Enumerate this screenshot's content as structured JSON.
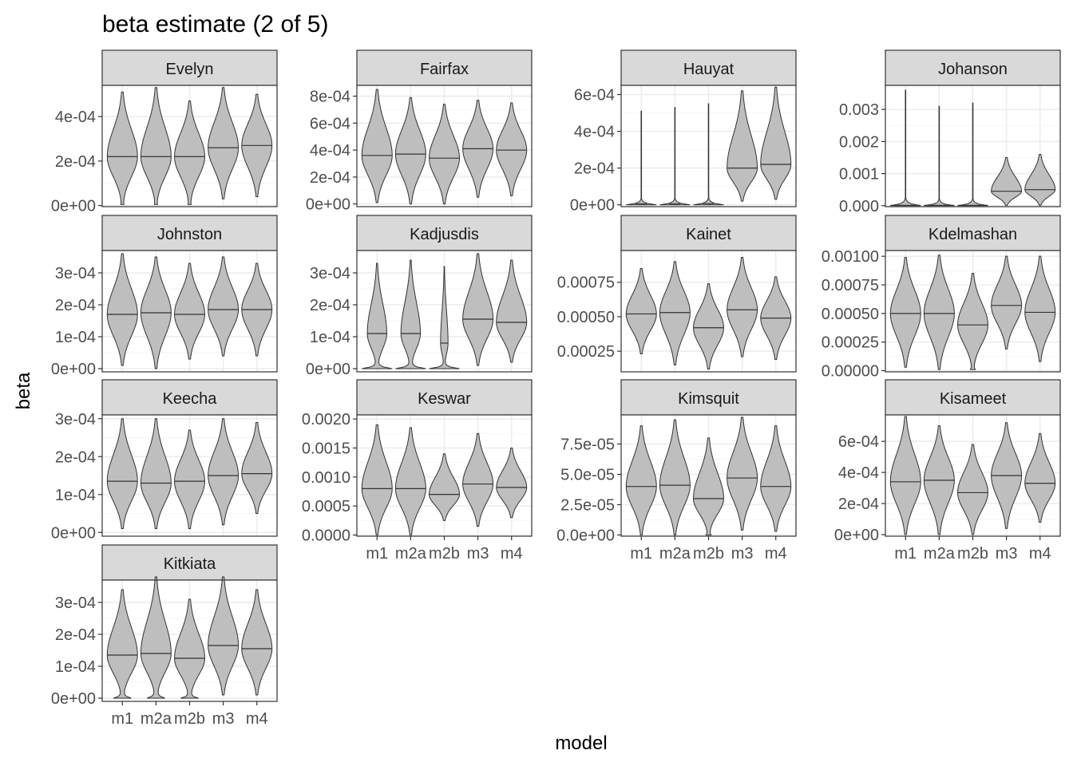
{
  "chart_data": {
    "type": "violin",
    "title": "beta estimate (2 of 5)",
    "xlabel": "model",
    "ylabel": "beta",
    "grid": true,
    "categories": [
      "m1",
      "m2a",
      "m2b",
      "m3",
      "m4"
    ],
    "panels": [
      {
        "name": "Evelyn",
        "ylim": [
          -5e-06,
          0.00054
        ],
        "yticks": [
          {
            "v": 0,
            "label": "0e+00"
          },
          {
            "v": 0.0002,
            "label": "2e-04"
          },
          {
            "v": 0.0004,
            "label": "4e-04"
          }
        ],
        "violins": [
          {
            "min": 5e-06,
            "max": 0.00051,
            "median": 0.00022,
            "skew": 0.05
          },
          {
            "min": 5e-06,
            "max": 0.00053,
            "median": 0.00022,
            "skew": 0.05
          },
          {
            "min": 5e-06,
            "max": 0.00047,
            "median": 0.00022,
            "skew": 0.05
          },
          {
            "min": 3e-05,
            "max": 0.00053,
            "median": 0.00026,
            "skew": 0
          },
          {
            "min": 4e-05,
            "max": 0.0005,
            "median": 0.00027,
            "skew": 0
          }
        ]
      },
      {
        "name": "Fairfax",
        "ylim": [
          -2e-05,
          0.00088
        ],
        "yticks": [
          {
            "v": 0,
            "label": "0e+00"
          },
          {
            "v": 0.0002,
            "label": "2e-04"
          },
          {
            "v": 0.0004,
            "label": "4e-04"
          },
          {
            "v": 0.0006,
            "label": "6e-04"
          },
          {
            "v": 0.0008,
            "label": "8e-04"
          }
        ],
        "violins": [
          {
            "min": 1e-05,
            "max": 0.00085,
            "median": 0.00036,
            "skew": 0
          },
          {
            "min": 0,
            "max": 0.00079,
            "median": 0.00037,
            "skew": 0
          },
          {
            "min": 0,
            "max": 0.00074,
            "median": 0.00034,
            "skew": 0
          },
          {
            "min": 5e-05,
            "max": 0.00077,
            "median": 0.00041,
            "skew": 0
          },
          {
            "min": 6e-05,
            "max": 0.00075,
            "median": 0.0004,
            "skew": 0
          }
        ]
      },
      {
        "name": "Hauyat",
        "ylim": [
          -1e-05,
          0.00065
        ],
        "yticks": [
          {
            "v": 0,
            "label": "0e+00"
          },
          {
            "v": 0.0002,
            "label": "2e-04"
          },
          {
            "v": 0.0004,
            "label": "4e-04"
          },
          {
            "v": 0.0006,
            "label": "6e-04"
          }
        ],
        "violins": [
          {
            "min": 0,
            "max": 0.00051,
            "median": 5e-06,
            "skew": 1
          },
          {
            "min": 0,
            "max": 0.00053,
            "median": 5e-06,
            "skew": 1
          },
          {
            "min": 0,
            "max": 0.00055,
            "median": 6e-06,
            "skew": 1
          },
          {
            "min": 2e-05,
            "max": 0.00062,
            "median": 0.0002,
            "skew": 0
          },
          {
            "min": 3e-05,
            "max": 0.00064,
            "median": 0.00022,
            "skew": 0
          }
        ]
      },
      {
        "name": "Johanson",
        "ylim": [
          -3e-05,
          0.00375
        ],
        "yticks": [
          {
            "v": 0,
            "label": "0.000"
          },
          {
            "v": 0.001,
            "label": "0.001"
          },
          {
            "v": 0.002,
            "label": "0.002"
          },
          {
            "v": 0.003,
            "label": "0.003"
          }
        ],
        "violins": [
          {
            "min": 0,
            "max": 0.0036,
            "median": 1e-05,
            "skew": 1
          },
          {
            "min": 0,
            "max": 0.0031,
            "median": 1e-05,
            "skew": 1
          },
          {
            "min": 0,
            "max": 0.0032,
            "median": 1e-05,
            "skew": 1
          },
          {
            "min": 1e-05,
            "max": 0.0015,
            "median": 0.00045,
            "skew": 0
          },
          {
            "min": 1e-05,
            "max": 0.0016,
            "median": 0.0005,
            "skew": 0
          }
        ]
      },
      {
        "name": "Johnston",
        "ylim": [
          -1e-05,
          0.00037
        ],
        "yticks": [
          {
            "v": 0,
            "label": "0e+00"
          },
          {
            "v": 0.0001,
            "label": "1e-04"
          },
          {
            "v": 0.0002,
            "label": "2e-04"
          },
          {
            "v": 0.0003,
            "label": "3e-04"
          }
        ],
        "violins": [
          {
            "min": 1e-05,
            "max": 0.00036,
            "median": 0.00017,
            "skew": 0
          },
          {
            "min": 0,
            "max": 0.00035,
            "median": 0.000175,
            "skew": 0
          },
          {
            "min": 3e-05,
            "max": 0.00033,
            "median": 0.00017,
            "skew": 0
          },
          {
            "min": 4e-05,
            "max": 0.00035,
            "median": 0.000185,
            "skew": 0
          },
          {
            "min": 4e-05,
            "max": 0.00033,
            "median": 0.000185,
            "skew": 0
          }
        ]
      },
      {
        "name": "Kadjusdis",
        "ylim": [
          -1e-05,
          0.00037
        ],
        "yticks": [
          {
            "v": 0,
            "label": "0e+00"
          },
          {
            "v": 0.0001,
            "label": "1e-04"
          },
          {
            "v": 0.0002,
            "label": "2e-04"
          },
          {
            "v": 0.0003,
            "label": "3e-04"
          }
        ],
        "violins": [
          {
            "min": 0,
            "max": 0.00033,
            "median": 0.00011,
            "skew": 0.6
          },
          {
            "min": 0,
            "max": 0.00034,
            "median": 0.00011,
            "skew": 0.6
          },
          {
            "min": 0,
            "max": 0.00032,
            "median": 8e-05,
            "skew": 0.8
          },
          {
            "min": 1e-05,
            "max": 0.00036,
            "median": 0.000155,
            "skew": 0
          },
          {
            "min": 2e-05,
            "max": 0.00034,
            "median": 0.000145,
            "skew": 0
          }
        ]
      },
      {
        "name": "Kainet",
        "ylim": [
          0.0001,
          0.00098
        ],
        "yticks": [
          {
            "v": 0.00025,
            "label": "0.00025"
          },
          {
            "v": 0.0005,
            "label": "0.00050"
          },
          {
            "v": 0.00075,
            "label": "0.00075"
          }
        ],
        "violins": [
          {
            "min": 0.00023,
            "max": 0.00085,
            "median": 0.00052,
            "skew": 0
          },
          {
            "min": 0.00015,
            "max": 0.0009,
            "median": 0.00053,
            "skew": 0
          },
          {
            "min": 0.00012,
            "max": 0.00074,
            "median": 0.00042,
            "skew": 0
          },
          {
            "min": 0.00021,
            "max": 0.00093,
            "median": 0.00055,
            "skew": 0
          },
          {
            "min": 0.00019,
            "max": 0.00079,
            "median": 0.00049,
            "skew": 0
          }
        ]
      },
      {
        "name": "Kdelmashan",
        "ylim": [
          -1e-05,
          0.00105
        ],
        "yticks": [
          {
            "v": 0,
            "label": "0.00000"
          },
          {
            "v": 0.00025,
            "label": "0.00025"
          },
          {
            "v": 0.0005,
            "label": "0.00050"
          },
          {
            "v": 0.00075,
            "label": "0.00075"
          },
          {
            "v": 0.001,
            "label": "0.00100"
          }
        ],
        "violins": [
          {
            "min": 3e-05,
            "max": 0.00099,
            "median": 0.0005,
            "skew": 0
          },
          {
            "min": 1e-05,
            "max": 0.00101,
            "median": 0.0005,
            "skew": 0
          },
          {
            "min": 1e-05,
            "max": 0.00085,
            "median": 0.0004,
            "skew": 0.1
          },
          {
            "min": 0.00019,
            "max": 0.001,
            "median": 0.00057,
            "skew": 0
          },
          {
            "min": 8e-05,
            "max": 0.001,
            "median": 0.00051,
            "skew": 0
          }
        ]
      },
      {
        "name": "Keecha",
        "ylim": [
          -1e-05,
          0.00031
        ],
        "yticks": [
          {
            "v": 0,
            "label": "0e+00"
          },
          {
            "v": 0.0001,
            "label": "1e-04"
          },
          {
            "v": 0.0002,
            "label": "2e-04"
          },
          {
            "v": 0.0003,
            "label": "3e-04"
          }
        ],
        "violins": [
          {
            "min": 1e-05,
            "max": 0.0003,
            "median": 0.000135,
            "skew": 0
          },
          {
            "min": 1e-05,
            "max": 0.0003,
            "median": 0.00013,
            "skew": 0
          },
          {
            "min": 1e-05,
            "max": 0.00027,
            "median": 0.000135,
            "skew": 0
          },
          {
            "min": 2e-05,
            "max": 0.0003,
            "median": 0.00015,
            "skew": 0
          },
          {
            "min": 5e-05,
            "max": 0.00029,
            "median": 0.000155,
            "skew": 0
          }
        ]
      },
      {
        "name": "Keswar",
        "ylim": [
          -2e-05,
          0.00207
        ],
        "yticks": [
          {
            "v": 0,
            "label": "0.0000"
          },
          {
            "v": 0.0005,
            "label": "0.0005"
          },
          {
            "v": 0.001,
            "label": "0.0010"
          },
          {
            "v": 0.0015,
            "label": "0.0015"
          },
          {
            "v": 0.002,
            "label": "0.0020"
          }
        ],
        "violins": [
          {
            "min": 0,
            "max": 0.0019,
            "median": 0.0008,
            "skew": 0
          },
          {
            "min": 0,
            "max": 0.00185,
            "median": 0.0008,
            "skew": 0
          },
          {
            "min": 0.00025,
            "max": 0.0014,
            "median": 0.0007,
            "skew": 0
          },
          {
            "min": 0.00015,
            "max": 0.00175,
            "median": 0.00088,
            "skew": 0
          },
          {
            "min": 0.0003,
            "max": 0.0015,
            "median": 0.00082,
            "skew": 0
          }
        ]
      },
      {
        "name": "Kimsquit",
        "ylim": [
          -1e-06,
          9.9e-05
        ],
        "yticks": [
          {
            "v": 0,
            "label": "0.0e+00"
          },
          {
            "v": 2.5e-05,
            "label": "2.5e-05"
          },
          {
            "v": 5e-05,
            "label": "5.0e-05"
          },
          {
            "v": 7.5e-05,
            "label": "7.5e-05"
          }
        ],
        "violins": [
          {
            "min": 0,
            "max": 9e-05,
            "median": 4e-05,
            "skew": 0
          },
          {
            "min": 0,
            "max": 9.5e-05,
            "median": 4.1e-05,
            "skew": 0
          },
          {
            "min": 0,
            "max": 8e-05,
            "median": 3e-05,
            "skew": 0.1
          },
          {
            "min": 4e-06,
            "max": 9.7e-05,
            "median": 4.7e-05,
            "skew": 0
          },
          {
            "min": 3e-06,
            "max": 9e-05,
            "median": 4e-05,
            "skew": 0
          }
        ]
      },
      {
        "name": "Kisameet",
        "ylim": [
          -1e-05,
          0.00077
        ],
        "yticks": [
          {
            "v": 0,
            "label": "0e+00"
          },
          {
            "v": 0.0002,
            "label": "2e-04"
          },
          {
            "v": 0.0004,
            "label": "4e-04"
          },
          {
            "v": 0.0006,
            "label": "6e-04"
          }
        ],
        "violins": [
          {
            "min": 0,
            "max": 0.00076,
            "median": 0.00034,
            "skew": 0
          },
          {
            "min": 0,
            "max": 0.0007,
            "median": 0.00035,
            "skew": 0
          },
          {
            "min": 0,
            "max": 0.00058,
            "median": 0.00027,
            "skew": 0
          },
          {
            "min": 4e-05,
            "max": 0.00072,
            "median": 0.00038,
            "skew": 0
          },
          {
            "min": 8e-05,
            "max": 0.00065,
            "median": 0.00033,
            "skew": 0
          }
        ]
      },
      {
        "name": "Kitkiata",
        "ylim": [
          -1e-05,
          0.00037
        ],
        "yticks": [
          {
            "v": 0,
            "label": "0e+00"
          },
          {
            "v": 0.0001,
            "label": "1e-04"
          },
          {
            "v": 0.0002,
            "label": "2e-04"
          },
          {
            "v": 0.0003,
            "label": "3e-04"
          }
        ],
        "violins": [
          {
            "min": 0,
            "max": 0.00034,
            "median": 0.000135,
            "skew": 0.35
          },
          {
            "min": 0,
            "max": 0.00038,
            "median": 0.00014,
            "skew": 0.35
          },
          {
            "min": 0,
            "max": 0.00031,
            "median": 0.000125,
            "skew": 0.35
          },
          {
            "min": 1e-05,
            "max": 0.00038,
            "median": 0.000165,
            "skew": 0
          },
          {
            "min": 1e-05,
            "max": 0.00034,
            "median": 0.000155,
            "skew": 0
          }
        ]
      }
    ],
    "colors": {
      "violin_fill": "#bebebe",
      "violin_stroke": "#333333",
      "strip_fill": "#d9d9d9",
      "strip_stroke": "#333333",
      "panel_border": "#333333",
      "grid_major": "#ebebeb",
      "grid_minor": "#f5f5f5",
      "tick_text": "#4d4d4d"
    }
  }
}
